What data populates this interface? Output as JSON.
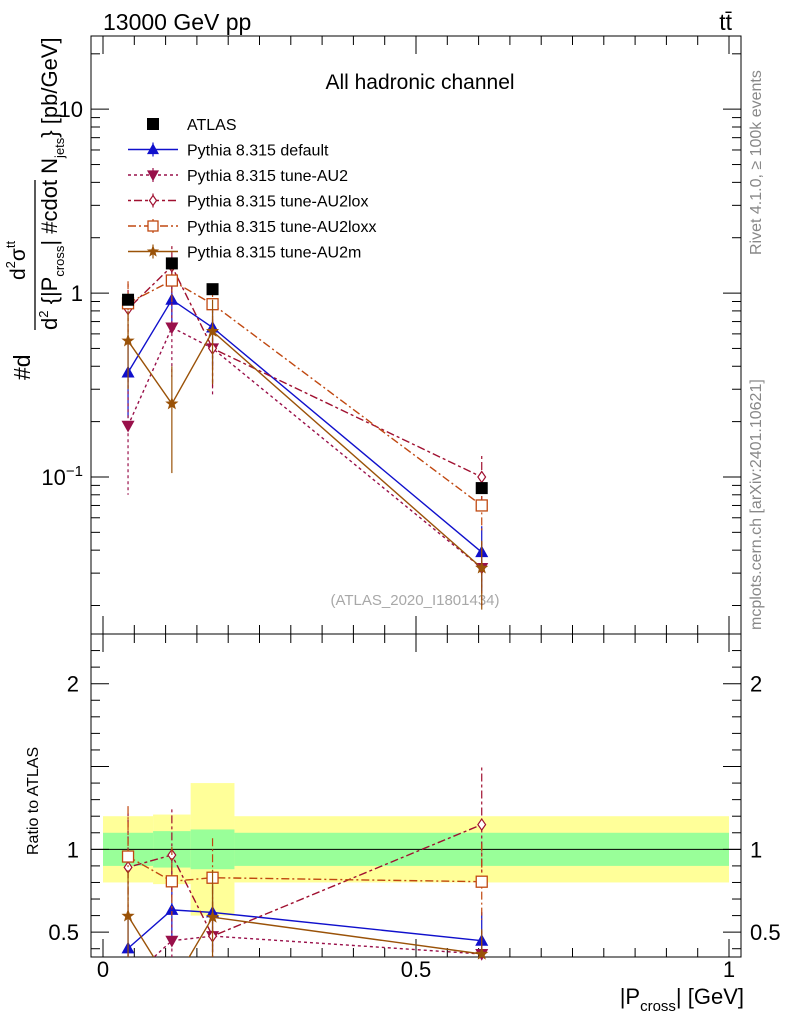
{
  "header": {
    "beam": "13000 GeV pp",
    "process": "tt̄"
  },
  "side": {
    "rivet": "Rivet 4.1.0, ≥ 100k events",
    "mcplots": "mcplots.cern.ch [arXiv:2401.10621]"
  },
  "chart_data": {
    "type": "line",
    "title": "All hadronic channel",
    "analysis_tag": "(ATLAS_2020_I1801434)",
    "ylabel": "#d d²σ^{tt} / d² {|P_cross| #cdot N_jets} [pb/GeV]",
    "ylabel_parts": {
      "p1": "#d",
      "p2": "d",
      "p3": "σ",
      "p4": "tt",
      "p5": "d",
      "p6": "2",
      "p7": " {|P",
      "p8": "cross",
      "p9": "| #cdot N",
      "p10": "jets",
      "p11": "} [pb/GeV]"
    },
    "xlabel_parts": {
      "a": "|P",
      "b": "cross",
      "c": "| [GeV]"
    },
    "ratio_ylabel": "Ratio to ATLAS",
    "xlim": [
      0,
      1
    ],
    "ylim_main": [
      0.014,
      25
    ],
    "ylim_ratio": [
      0.35,
      2.3
    ],
    "x_ticks": [
      0,
      0.5,
      1
    ],
    "x_tick_labels": [
      "0",
      "0.5",
      "1"
    ],
    "main_y_ticks": [
      0.1,
      1,
      10
    ],
    "main_y_tick_labels": [
      "10^-1",
      "1",
      "10"
    ],
    "ratio_y_ticks": [
      0.5,
      1,
      2
    ],
    "ratio_y_tick_labels": [
      "0.5",
      "1",
      "2"
    ],
    "x": [
      0.04,
      0.11,
      0.175,
      0.605
    ],
    "data_bins": [
      [
        0.0,
        0.08
      ],
      [
        0.08,
        0.14
      ],
      [
        0.14,
        0.21
      ],
      [
        0.21,
        1.0
      ]
    ],
    "data": {
      "name": "ATLAS",
      "values": [
        0.92,
        1.45,
        1.05,
        0.087
      ]
    },
    "band_inner": [
      0.1,
      0.11,
      0.12,
      0.1
    ],
    "band_outer": [
      0.2,
      0.21,
      0.4,
      0.2
    ],
    "series": [
      {
        "name": "Pythia 8.315 default",
        "color": "#1010cc",
        "dash": "",
        "marker": "triangle-up",
        "fill": true,
        "values": [
          0.37,
          0.92,
          0.65,
          0.039
        ],
        "err_low": [
          0.16,
          0.3,
          0.25,
          0.015
        ],
        "err_high": [
          0.16,
          0.4,
          0.25,
          0.015
        ]
      },
      {
        "name": "Pythia 8.315 tune-AU2",
        "color": "#99104a",
        "dash": "3,3",
        "marker": "triangle-down",
        "fill": true,
        "values": [
          0.19,
          0.65,
          0.5,
          0.032
        ],
        "err_low": [
          0.11,
          0.3,
          0.22,
          0.012
        ],
        "err_high": [
          0.15,
          0.3,
          0.22,
          0.012
        ]
      },
      {
        "name": "Pythia 8.315 tune-AU2lox",
        "color": "#a01030",
        "dash": "3,3,8,3",
        "marker": "diamond",
        "fill": false,
        "values": [
          0.82,
          1.4,
          0.5,
          0.1
        ],
        "err_low": [
          0.3,
          0.4,
          0.2,
          0.03
        ],
        "err_high": [
          0.3,
          0.4,
          0.2,
          0.03
        ]
      },
      {
        "name": "Pythia 8.315 tune-AU2loxx",
        "color": "#c04810",
        "dash": "8,3,2,3",
        "marker": "square",
        "fill": false,
        "values": [
          0.88,
          1.17,
          0.87,
          0.07
        ],
        "err_low": [
          0.28,
          0.3,
          0.25,
          0.02
        ],
        "err_high": [
          0.28,
          0.3,
          0.25,
          0.02
        ]
      },
      {
        "name": "Pythia 8.315 tune-AU2m",
        "color": "#9a5208",
        "dash": "",
        "marker": "star",
        "fill": true,
        "values": [
          0.55,
          0.25,
          0.62,
          0.032
        ],
        "err_low": [
          0.25,
          0.145,
          0.3,
          0.013
        ],
        "err_high": [
          0.25,
          0.15,
          0.3,
          0.013
        ]
      }
    ]
  }
}
